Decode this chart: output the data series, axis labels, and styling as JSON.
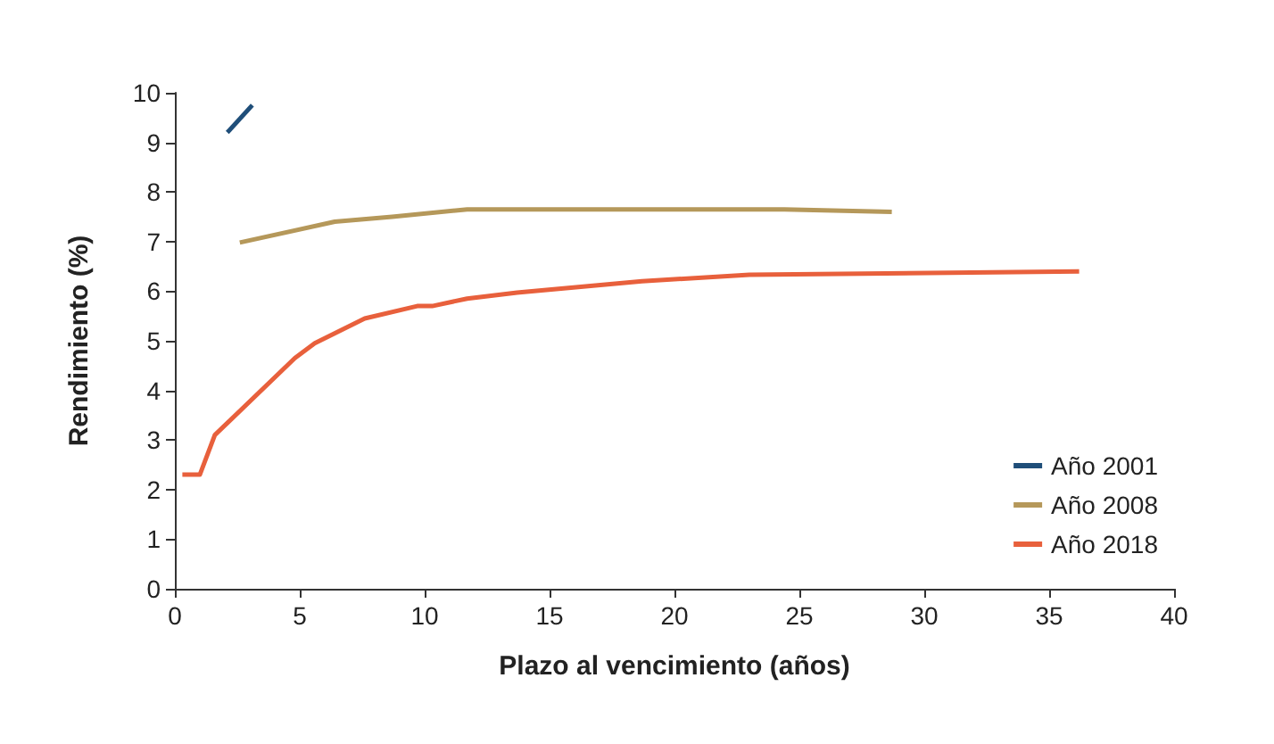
{
  "chart_data": {
    "type": "line",
    "xlabel": "Plazo al vencimiento (años)",
    "ylabel": "Rendimiento (%)",
    "xlim": [
      0,
      40
    ],
    "xticks": [
      0,
      5,
      10,
      15,
      20,
      25,
      30,
      35,
      40
    ],
    "ylim": [
      0,
      10
    ],
    "yticks": [
      0,
      1,
      2,
      3,
      4,
      5,
      6,
      7,
      8,
      9,
      10
    ],
    "grid": false,
    "legend": "bottom right",
    "marker": "none",
    "line_style": "solid",
    "series": [
      {
        "name": "Año 2001",
        "color": "#1f4e79",
        "x": [
          2.1,
          3.1
        ],
        "values": [
          9.2,
          9.75
        ]
      },
      {
        "name": "Año 2008",
        "color": "#b5985a",
        "x": [
          2.6,
          6.4,
          8.7,
          11.7,
          24.4,
          28.7
        ],
        "values": [
          6.98,
          7.4,
          7.5,
          7.65,
          7.65,
          7.6
        ]
      },
      {
        "name": "Año 2018",
        "color": "#e8603c",
        "x": [
          0.3,
          1,
          1.6,
          4.8,
          5.6,
          7.6,
          9.7,
          10.3,
          11.7,
          13.7,
          18.7,
          23,
          36.2
        ],
        "values": [
          2.3,
          2.3,
          3.1,
          4.65,
          4.95,
          5.45,
          5.7,
          5.7,
          5.85,
          5.97,
          6.2,
          6.33,
          6.4
        ]
      }
    ]
  }
}
